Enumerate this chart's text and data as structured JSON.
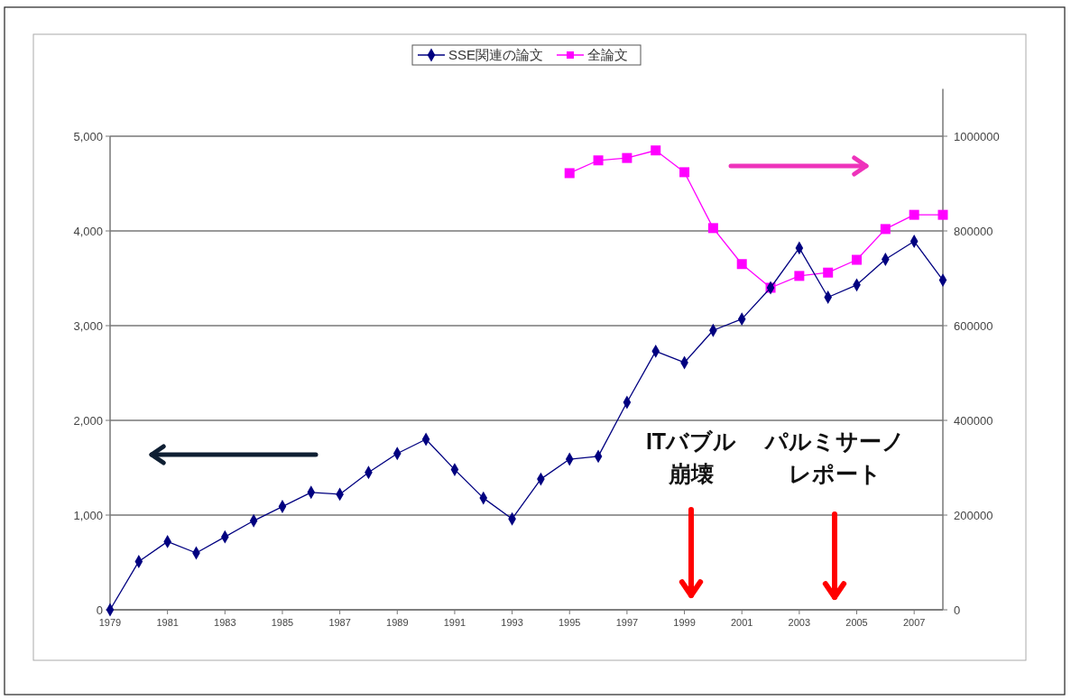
{
  "chart_data": {
    "type": "line",
    "x": [
      1979,
      1980,
      1981,
      1982,
      1983,
      1984,
      1985,
      1986,
      1987,
      1988,
      1989,
      1990,
      1991,
      1992,
      1993,
      1994,
      1995,
      1996,
      1997,
      1998,
      1999,
      2000,
      2001,
      2002,
      2003,
      2004,
      2005,
      2006,
      2007,
      2008
    ],
    "series": [
      {
        "name": "SSE関連の論文",
        "color": "#000080",
        "marker": "diamond",
        "values": [
          0,
          510,
          720,
          600,
          770,
          940,
          1090,
          1240,
          1220,
          1450,
          1650,
          1800,
          1480,
          1180,
          960,
          1380,
          1590,
          1620,
          2190,
          2730,
          2610,
          2950,
          3070,
          3400,
          3820,
          3300,
          3430,
          3700,
          3890,
          3480
        ]
      },
      {
        "name": "全論文",
        "color": "#ff00ff",
        "marker": "square",
        "axis": "y2",
        "values": [
          null,
          null,
          null,
          null,
          null,
          null,
          null,
          null,
          null,
          null,
          null,
          null,
          null,
          null,
          null,
          null,
          922000,
          949000,
          954000,
          970000,
          924000,
          806000,
          730000,
          680000,
          705000,
          712000,
          739000,
          804000,
          834000,
          834000
        ]
      }
    ],
    "xlim": [
      1979,
      2008
    ],
    "xticks": [
      1979,
      1981,
      1983,
      1985,
      1987,
      1989,
      1991,
      1993,
      1995,
      1997,
      1999,
      2001,
      2003,
      2005,
      2007
    ],
    "ylim": [
      0,
      5000
    ],
    "yticks": [
      0,
      {
        "value": 1000,
        "label": "1,000"
      },
      {
        "value": 2000,
        "label": "2,000"
      },
      {
        "value": 3000,
        "label": "3,000"
      },
      {
        "value": 4000,
        "label": "4,000"
      },
      {
        "value": 5000,
        "label": "5,000"
      }
    ],
    "y2lim": [
      0,
      1100000
    ],
    "y2ticks": [
      0,
      200000,
      400000,
      600000,
      800000,
      1000000
    ],
    "annotations": [
      "ITバブル崩壊",
      "パルミサーノレポート"
    ],
    "grid": "y",
    "legend": "top"
  }
}
